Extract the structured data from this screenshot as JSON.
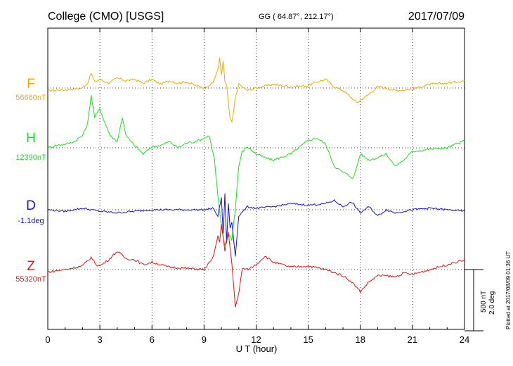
{
  "header": {
    "station": "College (CMO)  [USGS]",
    "coords": "GG ( 64.87°, 212.17°)",
    "date": "2017/07/09"
  },
  "footer": {
    "plotted": "Plotted at 2017/08/09 01:36 UT"
  },
  "scale": {
    "nT": "500 nT",
    "deg": "2.0 deg"
  },
  "colors": {
    "F": "#f2a900",
    "H": "#19e019",
    "D": "#1414d2",
    "Z": "#e01414",
    "axis": "#000000",
    "grid": "#000000"
  },
  "chart_data": {
    "type": "line",
    "title": "College (CMO)  [USGS]",
    "xlabel": "U T (hour)",
    "ylabel": "",
    "xlim": [
      0,
      24
    ],
    "xticks": [
      0,
      3,
      6,
      9,
      12,
      15,
      18,
      21,
      24
    ],
    "xtick_labels": [
      "0",
      "3",
      "6",
      "9",
      "12",
      "15",
      "18",
      "21",
      "24"
    ],
    "grid": true,
    "series": [
      {
        "name": "F",
        "baseline": "56660nT",
        "unit": "nT",
        "x": [
          0,
          1,
          2,
          2.3,
          2.5,
          2.7,
          3,
          3.5,
          4,
          4.5,
          5,
          5.5,
          6,
          6.5,
          7,
          7.5,
          8,
          8.5,
          9,
          9.5,
          9.8,
          9.9,
          10.0,
          10.1,
          10.2,
          10.3,
          10.4,
          10.5,
          10.6,
          10.7,
          10.8,
          11,
          11.5,
          12,
          13,
          14,
          15,
          15.5,
          16,
          16.5,
          17,
          17.5,
          17.8,
          18,
          18.5,
          19,
          19.5,
          20,
          21,
          22,
          23,
          24
        ],
        "values": [
          -20,
          -15,
          0,
          40,
          120,
          50,
          70,
          40,
          80,
          60,
          70,
          40,
          70,
          30,
          60,
          40,
          50,
          20,
          0,
          40,
          150,
          250,
          100,
          220,
          50,
          20,
          -120,
          -250,
          -280,
          -200,
          -80,
          30,
          -20,
          0,
          30,
          10,
          20,
          50,
          70,
          10,
          -20,
          -80,
          -120,
          -100,
          -50,
          10,
          0,
          -20,
          -10,
          30,
          40,
          60
        ]
      },
      {
        "name": "H",
        "baseline": "12390nT",
        "unit": "nT",
        "x": [
          0,
          0.5,
          1,
          1.5,
          2,
          2.3,
          2.5,
          2.7,
          3,
          3.3,
          3.6,
          4,
          4.3,
          4.5,
          4.8,
          5,
          5.5,
          6,
          6.5,
          7,
          7.5,
          8,
          8.5,
          9,
          9.3,
          9.6,
          9.8,
          10.0,
          10.2,
          10.4,
          10.6,
          10.8,
          11.0,
          11.2,
          11.5,
          12,
          12.5,
          13,
          14,
          15,
          15.5,
          16,
          16.5,
          17,
          17.3,
          17.6,
          18,
          18.5,
          19,
          19.5,
          20,
          20.5,
          21,
          22,
          23,
          24
        ],
        "values": [
          0,
          20,
          30,
          50,
          100,
          200,
          430,
          250,
          320,
          200,
          100,
          50,
          250,
          100,
          50,
          20,
          -50,
          10,
          20,
          50,
          0,
          40,
          50,
          80,
          100,
          -100,
          -400,
          -650,
          -800,
          -700,
          -750,
          -500,
          -150,
          -30,
          10,
          -50,
          -80,
          -100,
          -50,
          60,
          80,
          30,
          -150,
          -200,
          -220,
          -250,
          -50,
          -100,
          -80,
          -50,
          -150,
          -100,
          -30,
          -10,
          0,
          60
        ]
      },
      {
        "name": "D",
        "baseline": "-1.1deg",
        "unit": "deg",
        "x": [
          0,
          1,
          2,
          3,
          4,
          5,
          6,
          7,
          8,
          9,
          9.5,
          9.8,
          10.0,
          10.1,
          10.2,
          10.3,
          10.4,
          10.5,
          10.6,
          10.8,
          11,
          11.5,
          12,
          13,
          14,
          15,
          16,
          16.5,
          17,
          17.5,
          18,
          18.5,
          19,
          19.5,
          20,
          21,
          22,
          23,
          24
        ],
        "values": [
          0.0,
          -0.05,
          0.05,
          -0.05,
          -0.1,
          -0.05,
          0.0,
          0.0,
          0.0,
          0.0,
          0.05,
          -0.2,
          0.4,
          -0.8,
          0.5,
          -1.1,
          0.2,
          -0.6,
          -0.4,
          -1.5,
          -0.2,
          0.1,
          0.05,
          0.1,
          0.2,
          0.15,
          0.2,
          0.3,
          0.1,
          0.25,
          -0.1,
          0.1,
          -0.2,
          0.0,
          -0.1,
          0.0,
          0.05,
          0.0,
          -0.05
        ]
      },
      {
        "name": "Z",
        "baseline": "55320nT",
        "unit": "nT",
        "x": [
          0,
          1,
          2,
          2.5,
          2.8,
          3,
          3.5,
          4,
          4.5,
          5,
          5.5,
          6,
          6.5,
          7,
          8,
          9,
          9.5,
          9.8,
          9.9,
          10.0,
          10.2,
          10.4,
          10.6,
          10.8,
          11,
          11.2,
          11.5,
          12,
          12.5,
          13,
          14,
          15,
          16,
          17,
          17.5,
          18,
          18.5,
          19,
          19.5,
          20,
          20.5,
          21,
          22,
          23,
          24
        ],
        "values": [
          -20,
          0,
          30,
          100,
          40,
          30,
          80,
          150,
          90,
          80,
          40,
          60,
          40,
          20,
          10,
          0,
          90,
          270,
          220,
          380,
          150,
          300,
          50,
          -300,
          -200,
          10,
          0,
          40,
          110,
          60,
          20,
          30,
          0,
          -50,
          -100,
          -180,
          -100,
          -50,
          -50,
          -60,
          -30,
          -40,
          0,
          40,
          80
        ]
      }
    ]
  }
}
